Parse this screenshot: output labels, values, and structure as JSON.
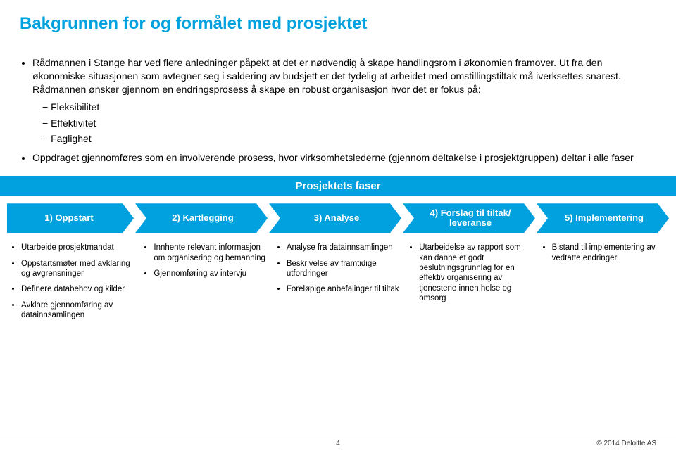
{
  "title": "Bakgrunnen for og formålet med prosjektet",
  "colors": {
    "accent": "#00A1DE",
    "text": "#000000",
    "bg": "#ffffff"
  },
  "typography": {
    "title_fontsize": 24,
    "body_fontsize": 14,
    "col_fontsize": 11.5,
    "font_family": "Arial"
  },
  "bullets": {
    "b1": "Rådmannen i Stange har ved flere anledninger påpekt at det er nødvendig å skape handlingsrom i økonomien framover. Ut fra den økonomiske situasjonen som avtegner seg i saldering av budsjett er det tydelig at arbeidet med omstillingstiltak må iverksettes snarest. Rådmannen ønsker gjennom en endringsprosess å skape en robust organisasjon hvor det er fokus på:",
    "sub": {
      "s1": "Fleksibilitet",
      "s2": "Effektivitet",
      "s3": "Faglighet"
    },
    "b2": "Oppdraget gjennomføres som en involverende prosess, hvor virksomhetslederne (gjennom deltakelse i prosjektgruppen) deltar i alle faser"
  },
  "band_title": "Prosjektets faser",
  "phases": {
    "p1": "1) Oppstart",
    "p2": "2) Kartlegging",
    "p3": "3) Analyse",
    "p4": "4) Forslag til tiltak/ leveranse",
    "p5": "5) Implementering"
  },
  "cols": {
    "c1": {
      "i1": "Utarbeide prosjektmandat",
      "i2": "Oppstartsmøter med avklaring og avgrensninger",
      "i3": "Definere databehov og kilder",
      "i4": "Avklare gjennomføring av datainnsamlingen"
    },
    "c2": {
      "i1": "Innhente relevant informasjon om organisering og bemanning",
      "i2": "Gjennomføring av intervju"
    },
    "c3": {
      "i1": "Analyse fra datainnsamlingen",
      "i2": "Beskrivelse av framtidige utfordringer",
      "i3": "Foreløpige anbefalinger til tiltak"
    },
    "c4": {
      "i1": "Utarbeidelse av rapport som kan danne et godt beslutningsgrunnlag for en effektiv organisering av tjenestene innen helse og omsorg"
    },
    "c5": {
      "i1": "Bistand til implementering av vedtatte endringer"
    }
  },
  "footer": {
    "page": "4",
    "copyright": "© 2014 Deloitte AS"
  }
}
